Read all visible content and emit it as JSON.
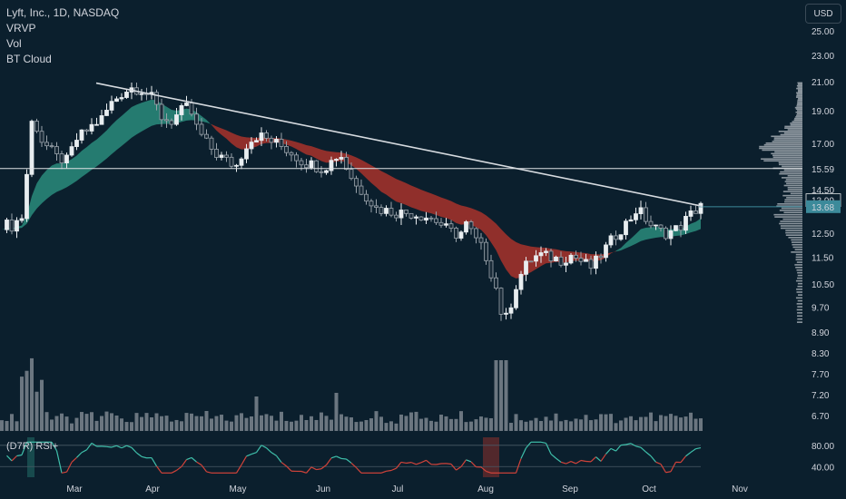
{
  "legend": {
    "title": "Lyft, Inc., 1D, NASDAQ",
    "indicator1": "VRVP",
    "indicator2": "Vol",
    "indicator3": "BT Cloud"
  },
  "currency_button": "USD",
  "rsi_label": "(D7R) RSI+",
  "colors": {
    "background": "#0b1f2d",
    "bull_cloud": "#2a8c7c",
    "bear_cloud": "#a8322c",
    "candle_up": "#e8edf0",
    "candle_down": "#9aa3ab",
    "trendline": "#d7dbe0",
    "volume_bars": "#6b7680",
    "vrvp": "#9aa3ab",
    "price_label_bg": "#3c8a9a"
  },
  "chart_data": {
    "type": "candlestick",
    "symbol": "Lyft, Inc.",
    "interval": "1D",
    "exchange": "NASDAQ",
    "x_ticks": [
      "Mar",
      "Apr",
      "May",
      "Jun",
      "Jul",
      "Aug",
      "Sep",
      "Oct",
      "Nov"
    ],
    "y_ticks": [
      "25.00",
      "23.00",
      "21.00",
      "19.00",
      "17.00",
      "15.59",
      "14.50",
      "13.99",
      "13.68",
      "12.50",
      "11.50",
      "10.50",
      "9.70",
      "8.90",
      "8.30",
      "7.70",
      "7.20",
      "6.70"
    ],
    "y_log": true,
    "price_close_path": [
      {
        "t": 0,
        "p": 12.9
      },
      {
        "t": 12,
        "p": 12.8
      },
      {
        "t": 16,
        "p": 13.0
      },
      {
        "t": 22,
        "p": 13.2
      },
      {
        "t": 28,
        "p": 15.5
      },
      {
        "t": 34,
        "p": 18.8
      },
      {
        "t": 42,
        "p": 17.3
      },
      {
        "t": 50,
        "p": 16.8
      },
      {
        "t": 60,
        "p": 16.2
      },
      {
        "t": 72,
        "p": 16.0
      },
      {
        "t": 82,
        "p": 17.2
      },
      {
        "t": 96,
        "p": 17.9
      },
      {
        "t": 110,
        "p": 18.5
      },
      {
        "t": 122,
        "p": 19.6
      },
      {
        "t": 134,
        "p": 20.3
      },
      {
        "t": 144,
        "p": 20.6
      },
      {
        "t": 156,
        "p": 20.4
      },
      {
        "t": 166,
        "p": 19.8
      },
      {
        "t": 176,
        "p": 18.6
      },
      {
        "t": 186,
        "p": 18.3
      },
      {
        "t": 196,
        "p": 18.9
      },
      {
        "t": 206,
        "p": 19.3
      },
      {
        "t": 214,
        "p": 18.0
      },
      {
        "t": 224,
        "p": 17.1
      },
      {
        "t": 236,
        "p": 16.4
      },
      {
        "t": 248,
        "p": 16.0
      },
      {
        "t": 258,
        "p": 15.7
      },
      {
        "t": 270,
        "p": 17.0
      },
      {
        "t": 282,
        "p": 17.5
      },
      {
        "t": 294,
        "p": 17.2
      },
      {
        "t": 306,
        "p": 16.9
      },
      {
        "t": 318,
        "p": 16.5
      },
      {
        "t": 330,
        "p": 16.0
      },
      {
        "t": 342,
        "p": 15.8
      },
      {
        "t": 354,
        "p": 15.6
      },
      {
        "t": 366,
        "p": 16.1
      },
      {
        "t": 372,
        "p": 16.5
      },
      {
        "t": 380,
        "p": 15.6
      },
      {
        "t": 390,
        "p": 14.7
      },
      {
        "t": 400,
        "p": 14.3
      },
      {
        "t": 412,
        "p": 13.6
      },
      {
        "t": 424,
        "p": 13.5
      },
      {
        "t": 436,
        "p": 13.4
      },
      {
        "t": 448,
        "p": 13.4
      },
      {
        "t": 460,
        "p": 13.3
      },
      {
        "t": 470,
        "p": 13.2
      },
      {
        "t": 480,
        "p": 13.0
      },
      {
        "t": 492,
        "p": 12.6
      },
      {
        "t": 504,
        "p": 12.4
      },
      {
        "t": 512,
        "p": 12.9
      },
      {
        "t": 522,
        "p": 12.2
      },
      {
        "t": 532,
        "p": 11.7
      },
      {
        "t": 540,
        "p": 10.8
      },
      {
        "t": 548,
        "p": 10.0
      },
      {
        "t": 552,
        "p": 9.1
      },
      {
        "t": 558,
        "p": 9.5
      },
      {
        "t": 566,
        "p": 10.4
      },
      {
        "t": 574,
        "p": 11.0
      },
      {
        "t": 582,
        "p": 11.4
      },
      {
        "t": 592,
        "p": 11.6
      },
      {
        "t": 604,
        "p": 11.5
      },
      {
        "t": 616,
        "p": 11.4
      },
      {
        "t": 628,
        "p": 11.6
      },
      {
        "t": 640,
        "p": 11.3
      },
      {
        "t": 650,
        "p": 11.1
      },
      {
        "t": 660,
        "p": 11.6
      },
      {
        "t": 670,
        "p": 12.1
      },
      {
        "t": 680,
        "p": 12.6
      },
      {
        "t": 690,
        "p": 13.0
      },
      {
        "t": 700,
        "p": 13.6
      },
      {
        "t": 708,
        "p": 13.2
      },
      {
        "t": 716,
        "p": 12.8
      },
      {
        "t": 724,
        "p": 12.6
      },
      {
        "t": 732,
        "p": 12.5
      },
      {
        "t": 740,
        "p": 12.6
      },
      {
        "t": 748,
        "p": 12.8
      },
      {
        "t": 756,
        "p": 13.2
      },
      {
        "t": 764,
        "p": 13.5
      },
      {
        "t": 772,
        "p": 13.99
      }
    ],
    "horizontal_levels": [
      15.59,
      13.68
    ],
    "last_price": 13.99,
    "trendline": {
      "from": {
        "t": 104,
        "p": 20.9
      },
      "to": {
        "t": 772,
        "p": 13.7
      }
    },
    "rsi_ticks": [
      "80.00",
      "40.00"
    ]
  }
}
